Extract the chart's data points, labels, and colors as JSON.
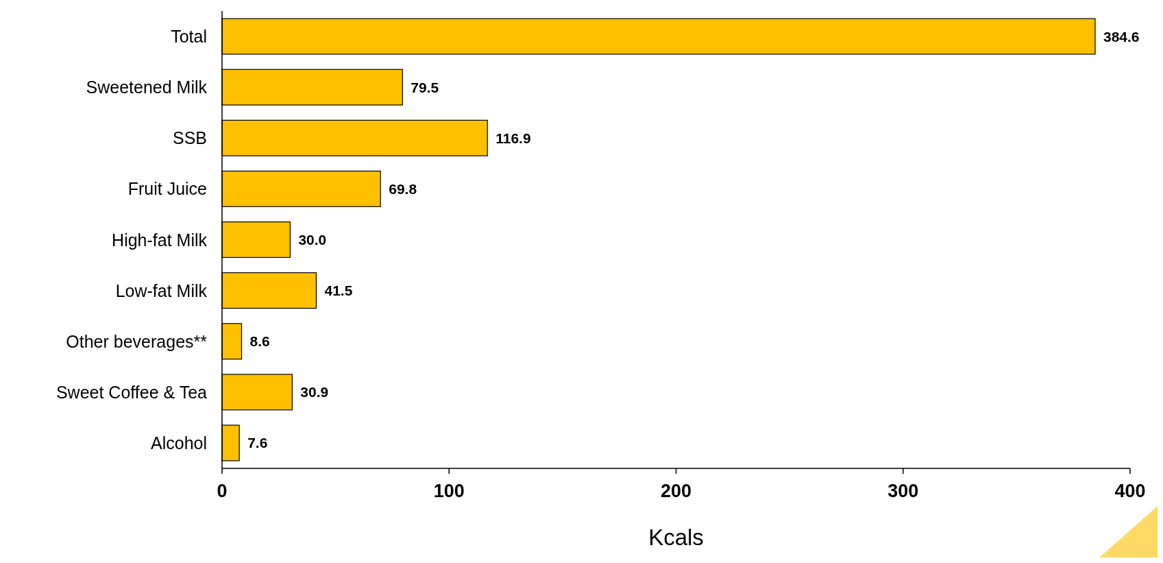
{
  "chart_data": {
    "type": "bar",
    "orientation": "horizontal",
    "xlabel": "Kcals",
    "categories": [
      "Total",
      "Sweetened Milk",
      "SSB",
      "Fruit Juice",
      "High-fat Milk",
      "Low-fat Milk",
      "Other beverages**",
      "Sweet Coffee & Tea",
      "Alcohol"
    ],
    "values": [
      384.6,
      79.5,
      116.9,
      69.8,
      30.0,
      41.5,
      8.6,
      30.9,
      7.6
    ],
    "value_labels": [
      "384.6",
      "79.5",
      "116.9",
      "69.8",
      "30.0",
      "41.5",
      "8.6",
      "30.9",
      "7.6"
    ],
    "color": "#ffc000",
    "xlim": [
      0,
      400
    ],
    "xticks": [
      0,
      100,
      200,
      300,
      400
    ],
    "grid": false
  }
}
